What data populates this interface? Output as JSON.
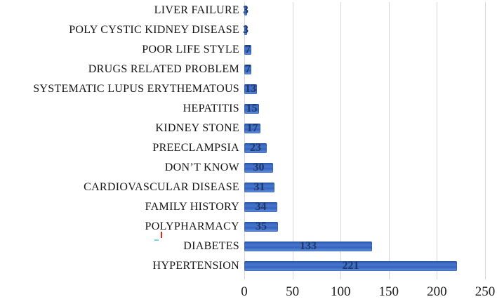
{
  "chart_data": {
    "type": "bar",
    "orientation": "horizontal",
    "title": "",
    "xlabel": "",
    "ylabel": "",
    "categories": [
      "LIVER FAILURE",
      "POLY CYSTIC KIDNEY DISEASE",
      "POOR LIFE STYLE",
      "DRUGS RELATED PROBLEM",
      "SYSTEMATIC LUPUS ERYTHEMATOUS",
      "HEPATITIS",
      "KIDNEY STONE",
      "PREECLAMPSIA",
      "DON’T KNOW",
      "CARDIOVASCULAR DISEASE",
      "FAMILY HISTORY",
      "POLYPHARMACY",
      "DIABETES",
      "HYPERTENSION"
    ],
    "values": [
      3,
      3,
      7,
      7,
      13,
      15,
      17,
      23,
      30,
      31,
      34,
      35,
      133,
      221
    ],
    "data_labels": [
      3,
      3,
      7,
      7,
      13,
      15,
      17,
      23,
      30,
      31,
      34,
      35,
      133,
      221
    ],
    "xlim": [
      0,
      250
    ],
    "x_ticks": [
      0,
      50,
      100,
      150,
      200,
      250
    ],
    "grid": "vertical",
    "legend": "none",
    "colors": {
      "bar_fill": "#3E6CC5",
      "bar_edge": "#2A52A0",
      "value_label": "#1F3864",
      "gridline": "#D6D6D6",
      "axis_text": "#1A1A1A",
      "background": "#FFFFFF"
    }
  }
}
